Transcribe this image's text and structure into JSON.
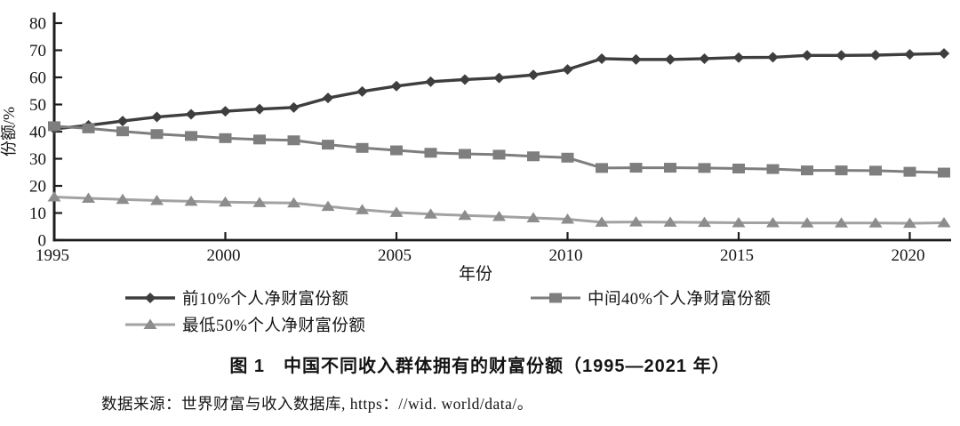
{
  "chart_data": {
    "type": "line",
    "title": "",
    "xlabel": "年份",
    "ylabel": "份额/%",
    "ylim": [
      0,
      80
    ],
    "yticks": [
      0,
      10,
      20,
      30,
      40,
      50,
      60,
      70,
      80
    ],
    "xticks": [
      1995,
      2000,
      2005,
      2010,
      2015,
      2020
    ],
    "grid": false,
    "legend_position": "bottom",
    "axis_color": "#1c1c1c",
    "x": [
      1995,
      1996,
      1997,
      1998,
      1999,
      2000,
      2001,
      2002,
      2003,
      2004,
      2005,
      2006,
      2007,
      2008,
      2009,
      2010,
      2011,
      2012,
      2013,
      2014,
      2015,
      2016,
      2017,
      2018,
      2019,
      2020,
      2021
    ],
    "series": [
      {
        "name": "前10%个人净财富份额",
        "marker": "diamond",
        "color": "#3e3e3e",
        "marker_color": "#3e3e3e",
        "line_width": 3.4,
        "values": [
          41.0,
          42.3,
          43.9,
          45.4,
          46.4,
          47.5,
          48.3,
          48.9,
          52.4,
          54.8,
          56.8,
          58.4,
          59.2,
          59.8,
          60.9,
          62.9,
          66.9,
          66.6,
          66.6,
          66.9,
          67.3,
          67.4,
          68.1,
          68.1,
          68.2,
          68.5,
          68.8
        ]
      },
      {
        "name": "中间40%个人净财富份额",
        "marker": "square",
        "color": "#7e7e7e",
        "marker_color": "#7e7e7e",
        "line_width": 3.0,
        "values": [
          42.0,
          41.2,
          40.1,
          39.1,
          38.4,
          37.6,
          37.1,
          36.8,
          35.2,
          34.0,
          33.1,
          32.2,
          31.8,
          31.5,
          30.9,
          30.4,
          26.6,
          26.7,
          26.7,
          26.6,
          26.4,
          26.2,
          25.7,
          25.7,
          25.6,
          25.2,
          24.9
        ]
      },
      {
        "name": "最低50%个人净财富份额",
        "marker": "triangle",
        "color": "#a2a2a2",
        "marker_color": "#8d8d8d",
        "line_width": 3.0,
        "values": [
          15.9,
          15.4,
          15.0,
          14.6,
          14.3,
          14.0,
          13.8,
          13.7,
          12.4,
          11.2,
          10.2,
          9.6,
          9.1,
          8.7,
          8.2,
          7.7,
          6.6,
          6.7,
          6.6,
          6.5,
          6.4,
          6.4,
          6.3,
          6.3,
          6.3,
          6.2,
          6.4
        ]
      }
    ]
  },
  "caption": {
    "title": "图 1　中国不同收入群体拥有的财富份额（1995—2021 年）",
    "source": "数据来源：世界财富与收入数据库, https：//wid. world/data/。"
  }
}
